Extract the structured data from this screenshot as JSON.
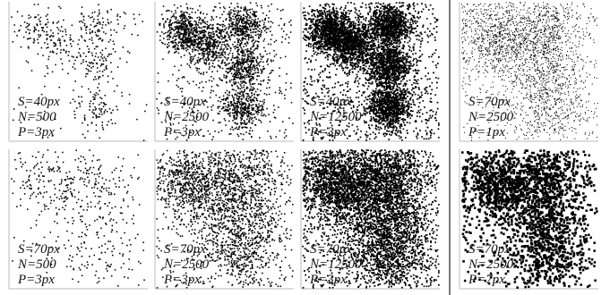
{
  "panels": [
    {
      "s": 40,
      "n": 500,
      "p": 3,
      "labels": [
        "S=40px",
        "N=500",
        "P=3px"
      ]
    },
    {
      "s": 40,
      "n": 2500,
      "p": 3,
      "labels": [
        "S=40px",
        "N=2500",
        "P=3px"
      ]
    },
    {
      "s": 40,
      "n": 12500,
      "p": 3,
      "labels": [
        "S=40px",
        "N=12500",
        "P=3px"
      ]
    },
    {
      "s": 70,
      "n": 2500,
      "p": 1,
      "labels": [
        "S=70px",
        "N=2500",
        "P=1px"
      ]
    },
    {
      "s": 70,
      "n": 500,
      "p": 3,
      "labels": [
        "S=70px",
        "N=500",
        "P=3px"
      ]
    },
    {
      "s": 70,
      "n": 2500,
      "p": 3,
      "labels": [
        "S=70px",
        "N=2500",
        "P=3px"
      ]
    },
    {
      "s": 70,
      "n": 12500,
      "p": 3,
      "labels": [
        "S=70px",
        "N=12500",
        "P=3px"
      ]
    },
    {
      "s": 70,
      "n": 2500,
      "p": 7,
      "labels": [
        "S=70px",
        "N=2500",
        "P=7px"
      ]
    }
  ]
}
